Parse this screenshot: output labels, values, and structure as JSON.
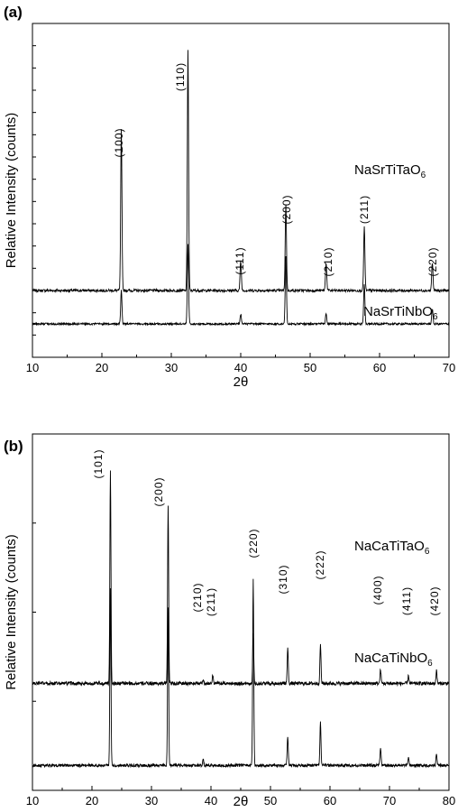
{
  "chart_data": [
    {
      "type": "line",
      "panel_label": "(a)",
      "xlabel": "2θ",
      "ylabel": "Relative Intensity (counts)",
      "xlim": [
        10,
        70
      ],
      "xticks": [
        10,
        20,
        30,
        40,
        50,
        60,
        70
      ],
      "y_minor_ticks": 14,
      "series": [
        {
          "name": "NaSrTiTaO",
          "name_subscript": "6",
          "baseline": 0.2,
          "noise": 0.004,
          "peaks": [
            {
              "x": 22.8,
              "y": 0.48,
              "label": "(100)"
            },
            {
              "x": 32.4,
              "y": 0.72,
              "label": "(110)"
            },
            {
              "x": 40.0,
              "y": 0.09,
              "label": "(111)"
            },
            {
              "x": 46.5,
              "y": 0.26,
              "label": "(200)"
            },
            {
              "x": 52.3,
              "y": 0.085,
              "label": "(210)"
            },
            {
              "x": 57.8,
              "y": 0.19,
              "label": "(211)"
            },
            {
              "x": 67.6,
              "y": 0.085,
              "label": "(220)"
            }
          ]
        },
        {
          "name": "NaSrTiNbO",
          "name_subscript": "6",
          "baseline": 0.1,
          "noise": 0.003,
          "peaks": [
            {
              "x": 22.8,
              "y": 0.1
            },
            {
              "x": 32.4,
              "y": 0.24
            },
            {
              "x": 40.0,
              "y": 0.03
            },
            {
              "x": 46.5,
              "y": 0.2
            },
            {
              "x": 52.3,
              "y": 0.03
            },
            {
              "x": 57.8,
              "y": 0.12
            },
            {
              "x": 67.6,
              "y": 0.045
            }
          ]
        }
      ]
    },
    {
      "type": "line",
      "panel_label": "(b)",
      "xlabel": "2θ",
      "ylabel": "Relative Intensity (counts)",
      "xlim": [
        10,
        80
      ],
      "xticks": [
        10,
        20,
        30,
        40,
        50,
        60,
        70,
        80
      ],
      "y_minor_ticks": 3,
      "series": [
        {
          "name": "NaCaTiTaO",
          "name_subscript": "6",
          "baseline": 0.3,
          "noise": 0.005,
          "peaks": [
            {
              "x": 23.1,
              "y": 0.6,
              "label": "(101)"
            },
            {
              "x": 32.8,
              "y": 0.5,
              "label": "(200)"
            },
            {
              "x": 38.7,
              "y": 0.012,
              "label": "(210)"
            },
            {
              "x": 40.3,
              "y": 0.025,
              "label": "(211)"
            },
            {
              "x": 47.1,
              "y": 0.14,
              "label": "(220)"
            },
            {
              "x": 52.9,
              "y": 0.1,
              "label": "(310)"
            },
            {
              "x": 58.4,
              "y": 0.11,
              "label": "(222)"
            },
            {
              "x": 68.5,
              "y": 0.04,
              "label": "(400)"
            },
            {
              "x": 73.2,
              "y": 0.022,
              "label": "(411)"
            },
            {
              "x": 77.9,
              "y": 0.035,
              "label": "(420)"
            }
          ]
        },
        {
          "name": "NaCaTiNbO",
          "name_subscript": "6",
          "baseline": 0.07,
          "noise": 0.004,
          "peaks": [
            {
              "x": 23.1,
              "y": 0.5
            },
            {
              "x": 32.8,
              "y": 0.44
            },
            {
              "x": 38.7,
              "y": 0.015
            },
            {
              "x": 47.1,
              "y": 0.52
            },
            {
              "x": 52.9,
              "y": 0.08
            },
            {
              "x": 58.4,
              "y": 0.12
            },
            {
              "x": 68.5,
              "y": 0.05
            },
            {
              "x": 73.2,
              "y": 0.02
            },
            {
              "x": 77.9,
              "y": 0.035
            }
          ]
        }
      ]
    }
  ]
}
